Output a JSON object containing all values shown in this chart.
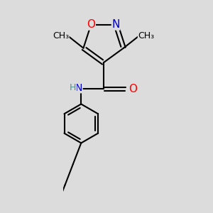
{
  "background_color": "#dcdcdc",
  "bond_color": "#000000",
  "bond_width": 1.5,
  "atom_colors": {
    "N": "#0000cd",
    "O": "#ff0000",
    "C": "#000000",
    "H": "#4a9090"
  },
  "font_size": 10
}
